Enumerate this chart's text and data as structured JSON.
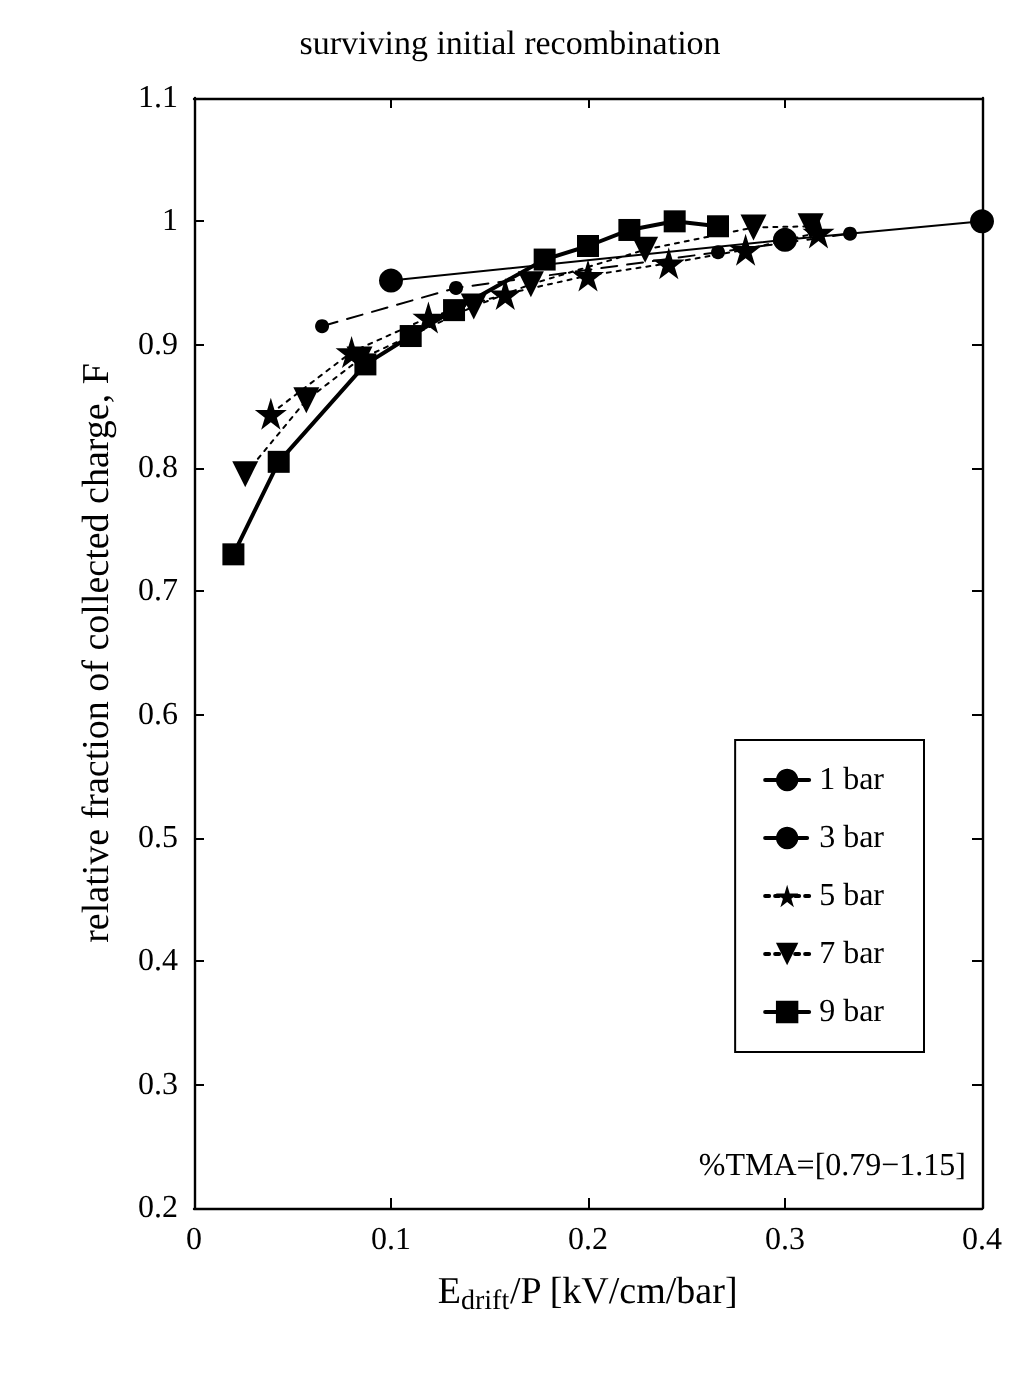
{
  "chart_data": {
    "type": "line",
    "title": "surviving initial recombination",
    "xlabel": "E$_{drift}$/P [kV/cm/bar]",
    "ylabel": "relative fraction of collected charge, F",
    "annotations": [
      "%TMA=[0.79−1.15]"
    ],
    "xlim": [
      0,
      0.4
    ],
    "xticks": [
      0,
      0.1,
      0.2,
      0.3,
      0.4
    ],
    "ylim": [
      0.2,
      1.1
    ],
    "yticks": [
      0.2,
      0.3,
      0.4,
      0.5,
      0.6,
      0.7,
      0.8,
      0.9,
      1,
      1.1
    ],
    "grid": false,
    "legend": "bottom right",
    "series": [
      {
        "name": "1 bar",
        "color": "#000000",
        "marker": "circle",
        "line_style": "solid",
        "x": [
          0.1,
          0.3,
          0.4
        ],
        "values": [
          0.952,
          0.985,
          1.0
        ]
      },
      {
        "name": "3 bar",
        "color": "#000000",
        "marker": "circle",
        "line_style": "dashed",
        "x": [
          0.065,
          0.133,
          0.266,
          0.333
        ],
        "values": [
          0.915,
          0.946,
          0.975,
          0.99
        ]
      },
      {
        "name": "5 bar",
        "color": "#000000",
        "marker": "star",
        "line_style": "dotted",
        "x": [
          0.039,
          0.08,
          0.119,
          0.158,
          0.2,
          0.241,
          0.28,
          0.317
        ],
        "values": [
          0.844,
          0.894,
          0.922,
          0.941,
          0.956,
          0.966,
          0.977,
          0.991
        ]
      },
      {
        "name": "7 bar",
        "color": "#000000",
        "marker": "triangle",
        "line_style": "dotted",
        "x": [
          0.026,
          0.057,
          0.084,
          0.142,
          0.171,
          0.229,
          0.284,
          0.313
        ],
        "values": [
          0.795,
          0.855,
          0.888,
          0.931,
          0.949,
          0.977,
          0.995,
          0.996
        ]
      },
      {
        "name": "9 bar",
        "color": "#000000",
        "marker": "square",
        "line_style": "solid",
        "x": [
          0.02,
          0.043,
          0.087,
          0.11,
          0.132,
          0.178,
          0.2,
          0.221,
          0.244,
          0.266
        ],
        "values": [
          0.73,
          0.805,
          0.884,
          0.907,
          0.928,
          0.969,
          0.98,
          0.993,
          1.0,
          0.996
        ]
      }
    ]
  }
}
